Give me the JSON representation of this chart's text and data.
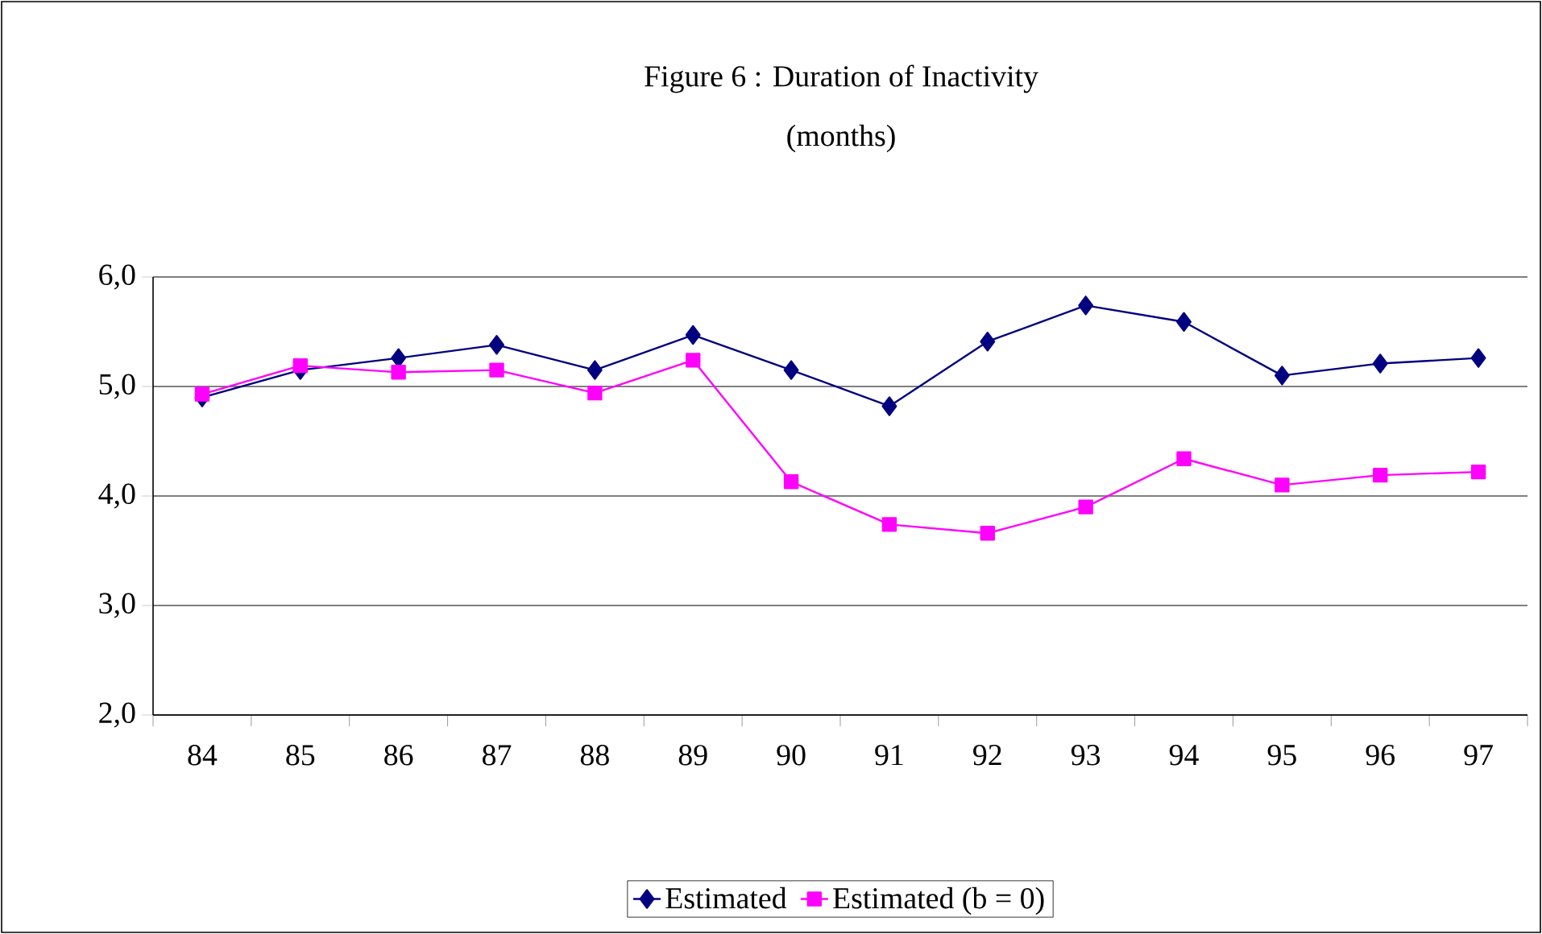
{
  "chart_data": {
    "type": "line",
    "title": "Figure 6 : Duration of Inactivity",
    "subtitle": "(months)",
    "categories": [
      "84",
      "85",
      "86",
      "87",
      "88",
      "89",
      "90",
      "91",
      "92",
      "93",
      "94",
      "95",
      "96",
      "97"
    ],
    "series": [
      {
        "name": "Estimated",
        "color": "#000080",
        "marker": "diamond",
        "values": [
          4.9,
          5.15,
          5.26,
          5.38,
          5.15,
          5.47,
          5.15,
          4.82,
          5.41,
          5.74,
          5.59,
          5.1,
          5.21,
          5.26
        ]
      },
      {
        "name": "Estimated (b = 0)",
        "color": "#ff00ff",
        "marker": "square",
        "values": [
          4.93,
          5.19,
          5.13,
          5.15,
          4.94,
          5.24,
          4.13,
          3.74,
          3.66,
          3.9,
          4.34,
          4.1,
          4.19,
          4.22
        ]
      }
    ],
    "ylim": [
      2,
      6
    ],
    "yticks": [
      {
        "value": 2,
        "label": "2,0"
      },
      {
        "value": 3,
        "label": "3,0"
      },
      {
        "value": 4,
        "label": "4,0"
      },
      {
        "value": 5,
        "label": "5,0"
      },
      {
        "value": 6,
        "label": "6,0"
      }
    ],
    "grid": "y",
    "legend": "bottom",
    "line_style": "solid"
  }
}
